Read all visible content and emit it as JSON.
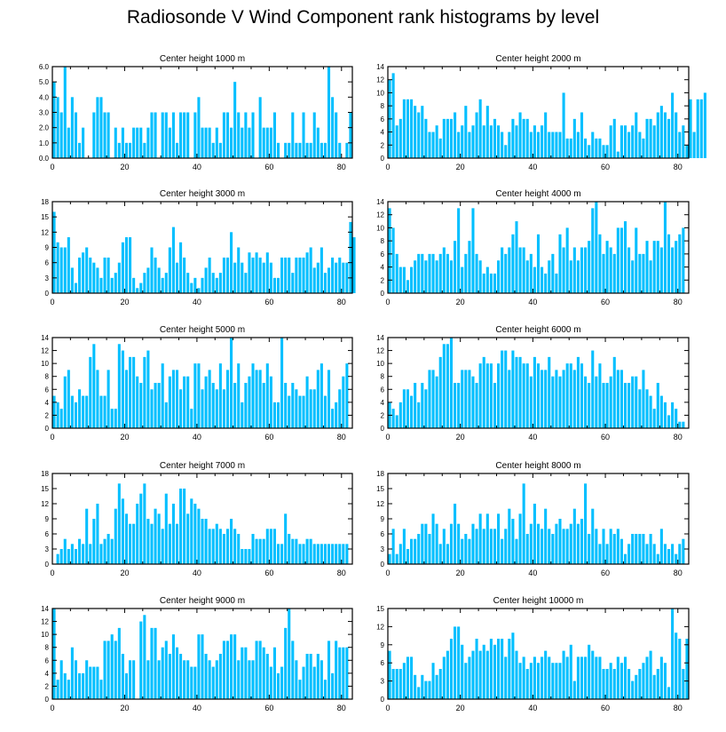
{
  "page": {
    "title": "Radiosonde V Wind Component rank histograms by level"
  },
  "colors": {
    "bar": "#00BFFF",
    "axis": "#000000"
  },
  "chart_data": [
    {
      "type": "bar",
      "title": "Center height 1000 m",
      "ylim": [
        0,
        6
      ],
      "yticks": [
        "0.0",
        "1.0",
        "2.0",
        "3.0",
        "4.0",
        "5.0",
        "6.0"
      ],
      "xticks": [
        "0",
        "20",
        "40",
        "60",
        "80"
      ],
      "values": [
        5,
        4,
        3,
        6,
        2,
        4,
        3,
        1,
        2,
        0,
        0,
        3,
        4,
        4,
        3,
        3,
        0,
        2,
        1,
        2,
        1,
        1,
        2,
        2,
        2,
        1,
        2,
        3,
        3,
        0,
        3,
        3,
        2,
        3,
        1,
        3,
        3,
        3,
        0,
        3,
        4,
        2,
        2,
        2,
        1,
        2,
        1,
        3,
        3,
        2,
        5,
        3,
        2,
        3,
        2,
        3,
        0,
        4,
        2,
        2,
        2,
        3,
        1,
        0,
        1,
        1,
        3,
        1,
        1,
        3,
        1,
        1,
        3,
        2,
        1,
        1,
        6,
        4,
        3,
        1,
        0,
        1,
        3
      ]
    },
    {
      "type": "bar",
      "title": "Center height 2000 m",
      "ylim": [
        0,
        14
      ],
      "yticks": [
        "0",
        "2",
        "4",
        "6",
        "8",
        "10",
        "12",
        "14"
      ],
      "xticks": [
        "0",
        "20",
        "40",
        "60",
        "80"
      ],
      "values": [
        12,
        13,
        5,
        6,
        9,
        9,
        9,
        8,
        7,
        8,
        6,
        4,
        4,
        5,
        3,
        6,
        6,
        6,
        7,
        4,
        5,
        8,
        4,
        5,
        7,
        9,
        5,
        8,
        5,
        6,
        5,
        4,
        2,
        4,
        6,
        5,
        7,
        6,
        6,
        4,
        5,
        4,
        5,
        7,
        4,
        4,
        4,
        4,
        10,
        3,
        3,
        6,
        4,
        7,
        3,
        2,
        4,
        3,
        3,
        2,
        2,
        5,
        6,
        1,
        5,
        5,
        4,
        5,
        7,
        4,
        3,
        6,
        6,
        5,
        7,
        8,
        7,
        6,
        10,
        7,
        4,
        5,
        2,
        9,
        4,
        9,
        9,
        10
      ]
    },
    {
      "type": "bar",
      "title": "Center height 3000 m",
      "ylim": [
        0,
        18
      ],
      "yticks": [
        "0",
        "3",
        "6",
        "9",
        "12",
        "15",
        "18"
      ],
      "xticks": [
        "0",
        "20",
        "40",
        "60",
        "80"
      ],
      "values": [
        16,
        10,
        9,
        9,
        11,
        5,
        2,
        7,
        8,
        9,
        7,
        6,
        5,
        3,
        7,
        7,
        3,
        4,
        6,
        10,
        11,
        11,
        3,
        1,
        2,
        4,
        5,
        9,
        7,
        5,
        3,
        4,
        9,
        13,
        6,
        10,
        7,
        4,
        2,
        3,
        1,
        3,
        5,
        7,
        4,
        3,
        4,
        7,
        7,
        12,
        6,
        9,
        6,
        4,
        8,
        7,
        8,
        7,
        6,
        8,
        6,
        3,
        3,
        7,
        7,
        7,
        4,
        7,
        7,
        7,
        8,
        9,
        5,
        6,
        9,
        4,
        5,
        7,
        6,
        7,
        6,
        6,
        14,
        11
      ]
    },
    {
      "type": "bar",
      "title": "Center height 4000 m",
      "ylim": [
        0,
        14
      ],
      "yticks": [
        "0",
        "2",
        "4",
        "6",
        "8",
        "10",
        "12",
        "14"
      ],
      "xticks": [
        "0",
        "20",
        "40",
        "60",
        "80"
      ],
      "values": [
        13,
        10,
        6,
        4,
        4,
        2,
        4,
        5,
        6,
        6,
        5,
        6,
        6,
        5,
        6,
        7,
        6,
        5,
        8,
        13,
        4,
        6,
        8,
        13,
        6,
        5,
        3,
        4,
        3,
        3,
        5,
        7,
        6,
        7,
        9,
        11,
        7,
        7,
        5,
        6,
        4,
        9,
        4,
        3,
        5,
        6,
        3,
        9,
        7,
        10,
        5,
        7,
        5,
        7,
        7,
        8,
        13,
        14,
        9,
        6,
        8,
        7,
        6,
        10,
        10,
        11,
        7,
        5,
        10,
        6,
        6,
        8,
        5,
        8,
        8,
        7,
        14,
        9,
        7,
        8,
        9,
        10
      ]
    },
    {
      "type": "bar",
      "title": "Center height 5000 m",
      "ylim": [
        0,
        14
      ],
      "yticks": [
        "0",
        "2",
        "4",
        "6",
        "8",
        "10",
        "12",
        "14"
      ],
      "xticks": [
        "0",
        "20",
        "40",
        "60",
        "80"
      ],
      "values": [
        5,
        4,
        3,
        8,
        9,
        5,
        4,
        6,
        5,
        5,
        11,
        13,
        9,
        5,
        5,
        9,
        3,
        3,
        13,
        12,
        9,
        11,
        11,
        8,
        7,
        11,
        12,
        6,
        7,
        7,
        10,
        4,
        8,
        9,
        9,
        6,
        8,
        8,
        3,
        10,
        10,
        6,
        8,
        9,
        7,
        6,
        10,
        6,
        9,
        14,
        7,
        10,
        4,
        7,
        8,
        10,
        9,
        9,
        7,
        10,
        8,
        4,
        4,
        14,
        7,
        5,
        7,
        6,
        5,
        5,
        8,
        6,
        6,
        9,
        10,
        5,
        9,
        3,
        4,
        6,
        8,
        10
      ]
    },
    {
      "type": "bar",
      "title": "Center height 6000 m",
      "ylim": [
        0,
        14
      ],
      "yticks": [
        "0",
        "2",
        "4",
        "6",
        "8",
        "10",
        "12",
        "14"
      ],
      "xticks": [
        "0",
        "20",
        "40",
        "60",
        "80"
      ],
      "values": [
        4,
        3,
        2,
        4,
        6,
        6,
        5,
        7,
        4,
        7,
        6,
        9,
        9,
        8,
        11,
        13,
        13,
        14,
        7,
        7,
        9,
        9,
        9,
        8,
        7,
        10,
        11,
        10,
        10,
        7,
        10,
        12,
        12,
        9,
        12,
        11,
        11,
        10,
        10,
        8,
        11,
        10,
        9,
        9,
        11,
        8,
        9,
        8,
        9,
        10,
        10,
        9,
        11,
        10,
        8,
        7,
        12,
        8,
        10,
        7,
        7,
        8,
        11,
        9,
        9,
        7,
        7,
        8,
        8,
        6,
        9,
        6,
        5,
        3,
        7,
        5,
        4,
        2,
        4,
        3,
        1,
        1
      ]
    },
    {
      "type": "bar",
      "title": "Center height 7000 m",
      "ylim": [
        0,
        18
      ],
      "yticks": [
        "0",
        "3",
        "6",
        "9",
        "12",
        "15",
        "18"
      ],
      "xticks": [
        "0",
        "20",
        "40",
        "60",
        "80"
      ],
      "values": [
        0,
        2,
        3,
        5,
        3,
        4,
        3,
        5,
        4,
        11,
        4,
        9,
        12,
        4,
        5,
        6,
        5,
        11,
        16,
        13,
        10,
        8,
        8,
        12,
        14,
        16,
        9,
        8,
        11,
        10,
        7,
        14,
        8,
        12,
        8,
        15,
        15,
        10,
        13,
        12,
        11,
        9,
        9,
        7,
        7,
        8,
        7,
        6,
        7,
        9,
        7,
        6,
        3,
        3,
        3,
        6,
        5,
        5,
        5,
        7,
        7,
        7,
        4,
        4,
        10,
        6,
        5,
        5,
        4,
        4,
        5,
        5,
        4,
        4,
        4,
        4,
        4,
        4,
        4,
        4,
        4,
        4
      ]
    },
    {
      "type": "bar",
      "title": "Center height 8000 m",
      "ylim": [
        0,
        18
      ],
      "yticks": [
        "0",
        "3",
        "6",
        "9",
        "12",
        "15",
        "18"
      ],
      "xticks": [
        "0",
        "20",
        "40",
        "60",
        "80"
      ],
      "values": [
        2,
        7,
        2,
        4,
        7,
        3,
        5,
        5,
        6,
        8,
        8,
        6,
        10,
        8,
        4,
        7,
        4,
        8,
        12,
        8,
        5,
        6,
        5,
        8,
        7,
        10,
        7,
        10,
        7,
        7,
        10,
        5,
        7,
        11,
        9,
        5,
        10,
        16,
        6,
        8,
        12,
        8,
        7,
        11,
        7,
        6,
        8,
        9,
        7,
        7,
        8,
        11,
        8,
        9,
        16,
        6,
        11,
        7,
        4,
        7,
        4,
        7,
        6,
        7,
        5,
        2,
        4,
        6,
        6,
        6,
        6,
        4,
        6,
        4,
        2,
        7,
        4,
        3,
        4,
        2,
        4,
        5
      ]
    },
    {
      "type": "bar",
      "title": "Center height 9000 m",
      "ylim": [
        0,
        14
      ],
      "yticks": [
        "0",
        "2",
        "4",
        "6",
        "8",
        "10",
        "12",
        "14"
      ],
      "xticks": [
        "0",
        "20",
        "40",
        "60",
        "80"
      ],
      "values": [
        14,
        3,
        6,
        4,
        3,
        8,
        6,
        4,
        4,
        6,
        5,
        5,
        5,
        3,
        9,
        9,
        10,
        9,
        11,
        7,
        4,
        6,
        6,
        0,
        12,
        13,
        6,
        11,
        11,
        6,
        8,
        9,
        7,
        10,
        8,
        7,
        6,
        6,
        5,
        5,
        10,
        10,
        7,
        6,
        5,
        6,
        7,
        9,
        9,
        10,
        10,
        6,
        8,
        8,
        6,
        6,
        9,
        9,
        8,
        7,
        5,
        8,
        4,
        5,
        11,
        14,
        9,
        6,
        3,
        5,
        7,
        7,
        5,
        7,
        6,
        3,
        9,
        4,
        9,
        8,
        8,
        8
      ]
    },
    {
      "type": "bar",
      "title": "Center height 10000 m",
      "ylim": [
        0,
        15
      ],
      "yticks": [
        "0",
        "3",
        "6",
        "9",
        "12",
        "15"
      ],
      "xticks": [
        "0",
        "20",
        "40",
        "60",
        "80"
      ],
      "values": [
        8,
        5,
        5,
        5,
        6,
        7,
        7,
        4,
        2,
        4,
        3,
        3,
        6,
        4,
        5,
        7,
        8,
        10,
        12,
        12,
        9,
        6,
        7,
        8,
        10,
        8,
        9,
        8,
        10,
        9,
        10,
        10,
        7,
        10,
        11,
        8,
        6,
        7,
        5,
        6,
        7,
        6,
        7,
        8,
        7,
        6,
        6,
        6,
        8,
        7,
        9,
        3,
        7,
        7,
        7,
        9,
        8,
        7,
        7,
        5,
        5,
        6,
        5,
        7,
        6,
        7,
        5,
        3,
        4,
        5,
        6,
        7,
        8,
        4,
        5,
        7,
        6,
        2,
        15,
        11,
        10,
        5,
        10
      ]
    }
  ]
}
